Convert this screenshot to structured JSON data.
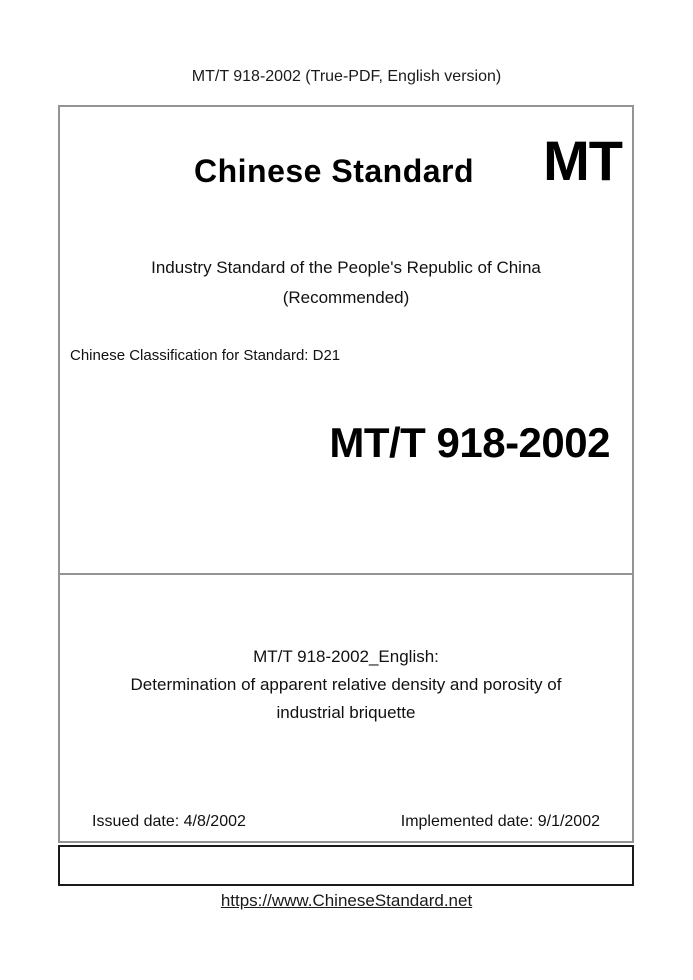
{
  "header": {
    "title": "MT/T 918-2002 (True-PDF, English version)"
  },
  "cover": {
    "brand_title": "Chinese Standard",
    "brand_logo": "MT",
    "subtitle_line1": "Industry Standard of the People's Republic of China",
    "subtitle_line2": "(Recommended)",
    "classification": "Chinese Classification for Standard: D21",
    "standard_number": "MT/T 918-2002"
  },
  "english_title": {
    "line1": "MT/T 918-2002_English:",
    "line2": "Determination of apparent relative density and porosity of",
    "line3": "industrial briquette"
  },
  "dates": {
    "issued": "Issued date: 4/8/2002",
    "implemented": "Implemented date: 9/1/2002"
  },
  "footer": {
    "url": "https://www.ChineseStandard.net"
  },
  "colors": {
    "box_border_gray": "#949494",
    "box_border_black": "#1a1a1a",
    "text": "#111111"
  }
}
